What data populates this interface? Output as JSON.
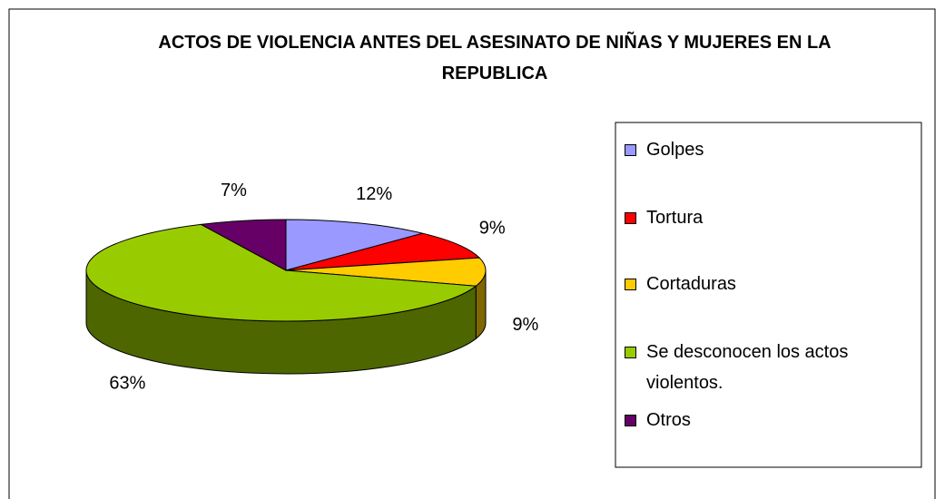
{
  "chart_data": {
    "type": "pie",
    "title": "ACTOS DE VIOLENCIA ANTES DEL ASESINATO DE NIÑAS Y MUJERES EN LA REPUBLICA",
    "categories": [
      "Golpes",
      "Tortura",
      "Cortaduras",
      "Se desconocen los actos violentos.",
      "Otros"
    ],
    "values": [
      12,
      9,
      9,
      63,
      7
    ],
    "value_labels": [
      "12%",
      "9%",
      "9%",
      "63%",
      "7%"
    ],
    "colors": [
      "#9999ff",
      "#ff0000",
      "#ffcc00",
      "#99cc00",
      "#660066"
    ],
    "legend": "right"
  }
}
